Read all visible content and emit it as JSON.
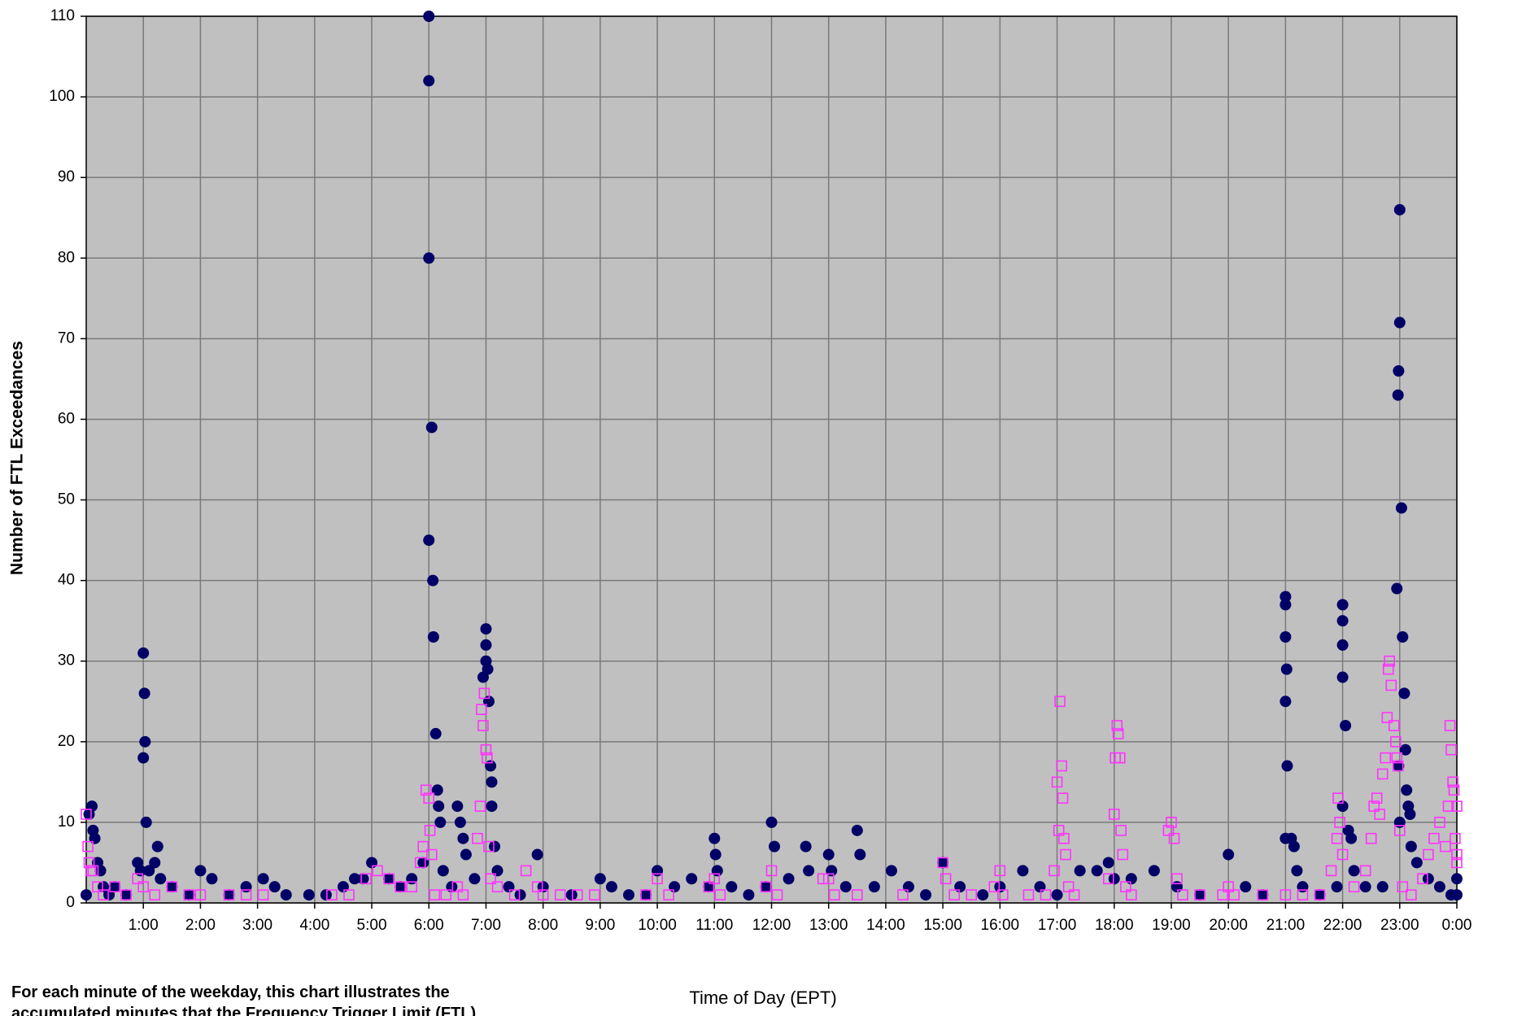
{
  "chart_data": {
    "type": "scatter",
    "xlabel": "Time of Day (EPT)",
    "ylabel": "Number of FTL  Exceedances",
    "caption": [
      "For each minute of the weekday, this chart illustrates the",
      "accumulated minutes that the Frequency Trigger Limit (FTL)"
    ],
    "xlim": [
      0,
      24
    ],
    "xticks": [
      {
        "value": 1,
        "label": "1:00"
      },
      {
        "value": 2,
        "label": "2:00"
      },
      {
        "value": 3,
        "label": "3:00"
      },
      {
        "value": 4,
        "label": "4:00"
      },
      {
        "value": 5,
        "label": "5:00"
      },
      {
        "value": 6,
        "label": "6:00"
      },
      {
        "value": 7,
        "label": "7:00"
      },
      {
        "value": 8,
        "label": "8:00"
      },
      {
        "value": 9,
        "label": "9:00"
      },
      {
        "value": 10,
        "label": "10:00"
      },
      {
        "value": 11,
        "label": "11:00"
      },
      {
        "value": 12,
        "label": "12:00"
      },
      {
        "value": 13,
        "label": "13:00"
      },
      {
        "value": 14,
        "label": "14:00"
      },
      {
        "value": 15,
        "label": "15:00"
      },
      {
        "value": 16,
        "label": "16:00"
      },
      {
        "value": 17,
        "label": "17:00"
      },
      {
        "value": 18,
        "label": "18:00"
      },
      {
        "value": 19,
        "label": "19:00"
      },
      {
        "value": 20,
        "label": "20:00"
      },
      {
        "value": 21,
        "label": "21:00"
      },
      {
        "value": 22,
        "label": "22:00"
      },
      {
        "value": 23,
        "label": "23:00"
      },
      {
        "value": 24,
        "label": "0:00"
      }
    ],
    "ylim": [
      0,
      110
    ],
    "yticks": [
      0,
      10,
      20,
      30,
      40,
      50,
      60,
      70,
      80,
      90,
      100,
      110
    ],
    "grid": true,
    "background": "#c0c0c0",
    "series": [
      {
        "color": "#000066",
        "marker": "circle",
        "x": [
          0.0,
          0.05,
          0.1,
          0.12,
          0.15,
          0.2,
          0.25,
          0.3,
          0.4,
          0.5,
          0.7,
          0.9,
          0.95,
          1.0,
          1.02,
          1.03,
          1.0,
          1.05,
          1.1,
          1.2,
          1.25,
          1.3,
          1.5,
          1.8,
          2.0,
          2.2,
          2.5,
          2.8,
          3.1,
          3.3,
          3.5,
          3.9,
          4.2,
          4.5,
          4.7,
          4.85,
          5.0,
          5.3,
          5.5,
          5.7,
          5.9,
          6.0,
          6.0,
          6.0,
          6.0,
          6.05,
          6.07,
          6.08,
          6.12,
          6.15,
          6.17,
          6.2,
          6.25,
          6.4,
          6.5,
          6.55,
          6.6,
          6.65,
          6.8,
          6.95,
          7.0,
          7.0,
          7.0,
          7.03,
          7.05,
          7.08,
          7.1,
          7.1,
          7.15,
          7.2,
          7.4,
          7.6,
          7.9,
          8.0,
          8.5,
          9.0,
          9.2,
          9.5,
          9.8,
          10.0,
          10.3,
          10.6,
          10.9,
          11.0,
          11.02,
          11.05,
          11.3,
          11.6,
          11.9,
          12.0,
          12.05,
          12.3,
          12.6,
          12.65,
          13.0,
          13.05,
          13.3,
          13.5,
          13.55,
          13.8,
          14.1,
          14.4,
          14.7,
          15.0,
          15.3,
          15.7,
          16.0,
          16.4,
          16.7,
          17.0,
          17.4,
          17.7,
          17.9,
          18.0,
          18.3,
          18.7,
          19.1,
          19.5,
          20.0,
          20.3,
          20.6,
          21.0,
          21.0,
          21.0,
          21.02,
          21.0,
          21.03,
          21.0,
          21.1,
          21.15,
          21.2,
          21.3,
          21.6,
          21.9,
          22.0,
          22.0,
          22.0,
          22.0,
          22.05,
          22.0,
          22.1,
          22.15,
          22.2,
          22.4,
          22.7,
          23.0,
          23.0,
          22.98,
          22.97,
          23.03,
          22.95,
          23.05,
          23.08,
          23.1,
          23.12,
          23.15,
          23.18,
          22.98,
          23.0,
          23.2,
          23.3,
          23.5,
          23.7,
          23.9,
          24.0,
          24.0
        ],
        "values": [
          1,
          11,
          12,
          9,
          8,
          5,
          4,
          2,
          1,
          2,
          1,
          5,
          4,
          31,
          26,
          20,
          18,
          10,
          4,
          5,
          7,
          3,
          2,
          1,
          4,
          3,
          1,
          2,
          3,
          2,
          1,
          1,
          1,
          2,
          3,
          3,
          5,
          3,
          2,
          3,
          5,
          110,
          102,
          80,
          45,
          59,
          40,
          33,
          21,
          14,
          12,
          10,
          4,
          2,
          12,
          10,
          8,
          6,
          3,
          28,
          34,
          32,
          30,
          29,
          25,
          17,
          15,
          12,
          7,
          4,
          2,
          1,
          6,
          2,
          1,
          3,
          2,
          1,
          1,
          4,
          2,
          3,
          2,
          8,
          6,
          4,
          2,
          1,
          2,
          10,
          7,
          3,
          7,
          4,
          6,
          4,
          2,
          9,
          6,
          2,
          4,
          2,
          1,
          5,
          2,
          1,
          2,
          4,
          2,
          1,
          4,
          4,
          5,
          3,
          3,
          4,
          2,
          1,
          6,
          2,
          1,
          38,
          37,
          33,
          29,
          25,
          17,
          8,
          8,
          7,
          4,
          2,
          1,
          2,
          37,
          35,
          32,
          28,
          22,
          12,
          9,
          8,
          4,
          2,
          2,
          86,
          72,
          66,
          63,
          49,
          39,
          33,
          26,
          19,
          14,
          12,
          11,
          17,
          10,
          7,
          5,
          3,
          2,
          1,
          3,
          1
        ]
      },
      {
        "color": "#ff33ff",
        "marker": "square",
        "x": [
          0.0,
          0.03,
          0.05,
          0.08,
          0.12,
          0.2,
          0.3,
          0.5,
          0.7,
          0.9,
          1.0,
          1.2,
          1.5,
          1.8,
          2.0,
          2.5,
          2.8,
          3.1,
          4.3,
          4.6,
          4.9,
          5.1,
          5.3,
          5.5,
          5.7,
          5.85,
          5.9,
          5.95,
          6.0,
          6.02,
          6.05,
          6.1,
          6.3,
          6.5,
          6.6,
          6.85,
          6.9,
          6.92,
          6.95,
          6.97,
          7.0,
          7.02,
          7.05,
          7.08,
          7.2,
          7.5,
          7.7,
          7.9,
          8.0,
          8.3,
          8.6,
          8.9,
          9.8,
          10.0,
          10.2,
          10.9,
          11.0,
          11.1,
          11.9,
          12.0,
          12.1,
          12.9,
          13.0,
          13.1,
          13.5,
          14.3,
          15.0,
          15.05,
          15.2,
          15.5,
          15.9,
          16.0,
          16.05,
          16.5,
          16.8,
          16.95,
          17.0,
          17.05,
          17.08,
          17.1,
          17.03,
          17.12,
          17.15,
          17.2,
          17.3,
          17.9,
          18.0,
          18.02,
          18.05,
          18.07,
          18.1,
          18.12,
          18.15,
          18.2,
          18.3,
          18.95,
          19.0,
          19.05,
          19.1,
          19.2,
          19.5,
          19.9,
          20.0,
          20.1,
          20.6,
          21.0,
          21.3,
          21.6,
          21.8,
          21.9,
          21.92,
          21.95,
          22.0,
          22.2,
          22.4,
          22.5,
          22.55,
          22.6,
          22.65,
          22.7,
          22.75,
          22.78,
          22.8,
          22.82,
          22.85,
          22.9,
          22.93,
          22.95,
          22.97,
          23.0,
          23.05,
          23.2,
          23.4,
          23.5,
          23.6,
          23.7,
          23.8,
          23.85,
          23.88,
          23.9,
          23.93,
          23.95,
          23.97,
          24.0,
          24.0,
          24.0
        ],
        "values": [
          11,
          7,
          5,
          4,
          4,
          2,
          1,
          2,
          1,
          3,
          2,
          1,
          2,
          1,
          1,
          1,
          1,
          1,
          1,
          1,
          3,
          4,
          3,
          2,
          2,
          5,
          7,
          14,
          13,
          9,
          6,
          1,
          1,
          2,
          1,
          8,
          12,
          24,
          22,
          26,
          19,
          18,
          7,
          3,
          2,
          1,
          4,
          2,
          1,
          1,
          1,
          1,
          1,
          3,
          1,
          2,
          3,
          1,
          2,
          4,
          1,
          3,
          3,
          1,
          1,
          1,
          5,
          3,
          1,
          1,
          2,
          4,
          1,
          1,
          1,
          4,
          15,
          25,
          17,
          13,
          9,
          8,
          6,
          2,
          1,
          3,
          11,
          18,
          22,
          21,
          18,
          9,
          6,
          2,
          1,
          9,
          10,
          8,
          3,
          1,
          1,
          1,
          2,
          1,
          1,
          1,
          1,
          1,
          4,
          8,
          13,
          10,
          6,
          2,
          4,
          8,
          12,
          13,
          11,
          16,
          18,
          23,
          29,
          30,
          27,
          22,
          20,
          18,
          17,
          9,
          2,
          1,
          3,
          6,
          8,
          10,
          7,
          12,
          22,
          19,
          15,
          14,
          8,
          12,
          6,
          5
        ]
      }
    ]
  }
}
